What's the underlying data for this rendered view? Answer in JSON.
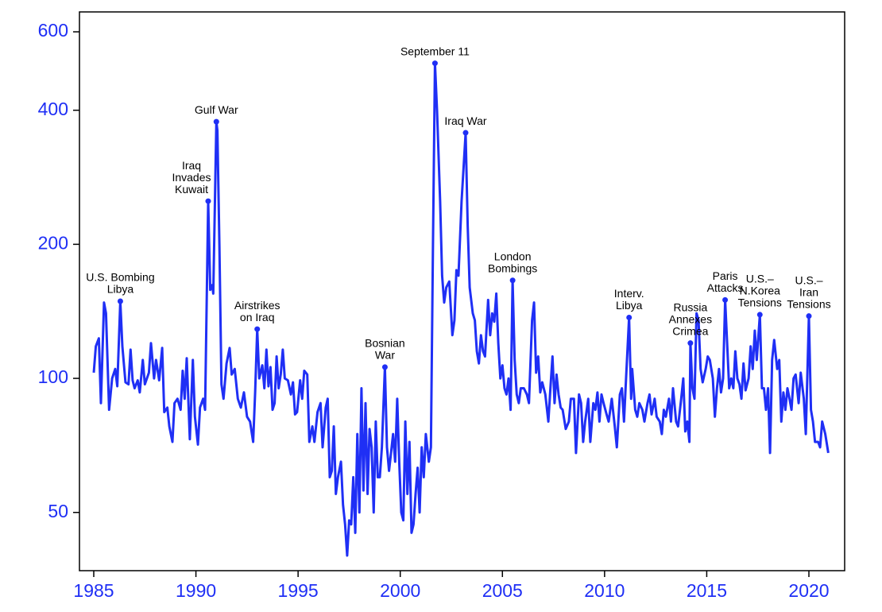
{
  "chart_data": {
    "type": "line",
    "log_scale_y": true,
    "xlim": [
      1984.3,
      2021.75
    ],
    "ylim": [
      37,
      665
    ],
    "xticks": [
      1985,
      1990,
      1995,
      2000,
      2005,
      2010,
      2015,
      2020
    ],
    "yticks": [
      50,
      100,
      200,
      400,
      600
    ],
    "x": [
      1985.0,
      1985.1,
      1985.25,
      1985.35,
      1985.5,
      1985.6,
      1985.75,
      1985.9,
      1986.05,
      1986.15,
      1986.3,
      1986.4,
      1986.55,
      1986.7,
      1986.8,
      1986.9,
      1987.0,
      1987.15,
      1987.25,
      1987.4,
      1987.5,
      1987.7,
      1987.8,
      1987.95,
      1988.05,
      1988.2,
      1988.35,
      1988.45,
      1988.6,
      1988.7,
      1988.85,
      1988.95,
      1989.1,
      1989.25,
      1989.35,
      1989.45,
      1989.55,
      1989.7,
      1989.85,
      1989.95,
      1990.1,
      1990.2,
      1990.35,
      1990.45,
      1990.6,
      1990.7,
      1990.8,
      1990.85,
      1991.0,
      1991.05,
      1991.15,
      1991.25,
      1991.35,
      1991.5,
      1991.65,
      1991.75,
      1991.9,
      1992.05,
      1992.2,
      1992.35,
      1992.5,
      1992.65,
      1992.8,
      1992.9,
      1993.0,
      1993.1,
      1993.25,
      1993.35,
      1993.45,
      1993.55,
      1993.65,
      1993.75,
      1993.85,
      1993.95,
      1994.05,
      1994.15,
      1994.25,
      1994.35,
      1994.5,
      1994.65,
      1994.75,
      1994.85,
      1994.95,
      1995.1,
      1995.2,
      1995.3,
      1995.45,
      1995.55,
      1995.7,
      1995.8,
      1995.95,
      1996.1,
      1996.2,
      1996.35,
      1996.45,
      1996.55,
      1996.65,
      1996.75,
      1996.85,
      1996.95,
      1997.1,
      1997.2,
      1997.3,
      1997.4,
      1997.5,
      1997.6,
      1997.7,
      1997.8,
      1997.9,
      1998.0,
      1998.1,
      1998.2,
      1998.3,
      1998.4,
      1998.5,
      1998.6,
      1998.7,
      1998.8,
      1998.9,
      1999.0,
      1999.1,
      1999.25,
      1999.35,
      1999.45,
      1999.55,
      1999.65,
      1999.75,
      1999.85,
      1999.95,
      2000.05,
      2000.15,
      2000.25,
      2000.35,
      2000.45,
      2000.55,
      2000.65,
      2000.75,
      2000.85,
      2000.95,
      2001.05,
      2001.15,
      2001.25,
      2001.4,
      2001.5,
      2001.6,
      2001.7,
      2001.8,
      2001.95,
      2002.05,
      2002.15,
      2002.25,
      2002.4,
      2002.55,
      2002.65,
      2002.75,
      2002.85,
      2003.0,
      2003.2,
      2003.3,
      2003.4,
      2003.55,
      2003.65,
      2003.75,
      2003.85,
      2003.95,
      2004.05,
      2004.15,
      2004.3,
      2004.4,
      2004.5,
      2004.6,
      2004.7,
      2004.8,
      2004.9,
      2005.0,
      2005.1,
      2005.2,
      2005.3,
      2005.4,
      2005.5,
      2005.6,
      2005.7,
      2005.8,
      2005.9,
      2006.05,
      2006.2,
      2006.3,
      2006.45,
      2006.55,
      2006.65,
      2006.75,
      2006.85,
      2006.95,
      2007.1,
      2007.25,
      2007.35,
      2007.45,
      2007.55,
      2007.65,
      2007.75,
      2007.85,
      2007.95,
      2008.1,
      2008.25,
      2008.35,
      2008.5,
      2008.6,
      2008.75,
      2008.85,
      2008.95,
      2009.05,
      2009.2,
      2009.3,
      2009.45,
      2009.55,
      2009.65,
      2009.75,
      2009.85,
      2009.95,
      2010.1,
      2010.2,
      2010.35,
      2010.5,
      2010.6,
      2010.75,
      2010.85,
      2010.95,
      2011.05,
      2011.2,
      2011.3,
      2011.35,
      2011.5,
      2011.6,
      2011.7,
      2011.85,
      2011.95,
      2012.1,
      2012.2,
      2012.3,
      2012.45,
      2012.55,
      2012.7,
      2012.8,
      2012.9,
      2013.0,
      2013.15,
      2013.25,
      2013.35,
      2013.5,
      2013.6,
      2013.75,
      2013.85,
      2013.95,
      2014.05,
      2014.15,
      2014.2,
      2014.3,
      2014.4,
      2014.5,
      2014.6,
      2014.7,
      2014.8,
      2014.95,
      2015.05,
      2015.15,
      2015.3,
      2015.4,
      2015.5,
      2015.6,
      2015.7,
      2015.8,
      2015.9,
      2016.0,
      2016.1,
      2016.2,
      2016.3,
      2016.4,
      2016.5,
      2016.6,
      2016.7,
      2016.8,
      2016.9,
      2017.05,
      2017.15,
      2017.25,
      2017.35,
      2017.45,
      2017.6,
      2017.7,
      2017.8,
      2017.9,
      2018.0,
      2018.1,
      2018.2,
      2018.3,
      2018.45,
      2018.55,
      2018.65,
      2018.75,
      2018.85,
      2018.95,
      2019.05,
      2019.15,
      2019.25,
      2019.35,
      2019.5,
      2019.6,
      2019.75,
      2019.85,
      2020.0,
      2020.1,
      2020.2,
      2020.3,
      2020.45,
      2020.55,
      2020.65,
      2020.8,
      2020.95
    ],
    "series": [
      {
        "color": "#1f2ff5",
        "values": [
          103,
          118,
          123,
          88,
          148,
          140,
          85,
          100,
          105,
          96,
          149,
          118,
          98,
          97,
          116,
          99,
          95,
          99,
          93,
          110,
          97,
          103,
          120,
          100,
          110,
          99,
          117,
          84,
          86,
          78,
          72,
          88,
          90,
          85,
          104,
          90,
          111,
          73,
          110,
          82,
          71,
          86,
          90,
          85,
          250,
          158,
          162,
          155,
          377,
          360,
          200,
          97,
          90,
          108,
          117,
          102,
          105,
          90,
          86,
          93,
          82,
          80,
          72,
          93,
          129,
          100,
          107,
          95,
          116,
          96,
          106,
          85,
          88,
          112,
          95,
          102,
          116,
          100,
          99,
          92,
          98,
          83,
          84,
          99,
          90,
          104,
          102,
          72,
          78,
          72,
          84,
          88,
          70,
          86,
          90,
          60,
          62,
          78,
          55,
          60,
          65,
          52,
          47,
          40,
          48,
          47,
          60,
          45,
          75,
          50,
          95,
          56,
          88,
          55,
          77,
          70,
          50,
          80,
          60,
          60,
          70,
          106,
          70,
          62,
          68,
          75,
          65,
          90,
          65,
          50,
          48,
          80,
          55,
          72,
          45,
          47,
          55,
          63,
          50,
          70,
          60,
          75,
          65,
          70,
          200,
          510,
          400,
          250,
          170,
          148,
          160,
          165,
          125,
          135,
          175,
          170,
          250,
          356,
          220,
          160,
          140,
          135,
          115,
          108,
          125,
          115,
          112,
          150,
          125,
          140,
          134,
          155,
          120,
          100,
          107,
          95,
          92,
          100,
          85,
          166,
          110,
          92,
          88,
          95,
          95,
          92,
          88,
          135,
          148,
          103,
          112,
          93,
          98,
          92,
          80,
          95,
          112,
          88,
          102,
          92,
          86,
          85,
          77,
          80,
          90,
          90,
          68,
          92,
          88,
          72,
          80,
          90,
          72,
          88,
          85,
          93,
          80,
          92,
          88,
          83,
          80,
          90,
          78,
          70,
          92,
          95,
          80,
          100,
          137,
          90,
          105,
          85,
          82,
          88,
          85,
          80,
          88,
          92,
          83,
          90,
          82,
          80,
          75,
          85,
          82,
          90,
          80,
          95,
          80,
          78,
          90,
          100,
          76,
          80,
          72,
          120,
          95,
          90,
          140,
          135,
          105,
          98,
          105,
          112,
          110,
          100,
          82,
          95,
          105,
          93,
          100,
          150,
          120,
          95,
          100,
          95,
          115,
          100,
          97,
          90,
          108,
          94,
          100,
          118,
          105,
          128,
          110,
          139,
          95,
          95,
          85,
          95,
          68,
          110,
          122,
          105,
          110,
          80,
          93,
          85,
          95,
          90,
          85,
          100,
          102,
          88,
          103,
          90,
          75,
          138,
          85,
          80,
          72,
          72,
          70,
          80,
          75,
          68
        ]
      }
    ],
    "annotations": [
      {
        "lines": [
          "U.S. Bombing",
          "Libya"
        ],
        "x": 1986.3,
        "value": 149
      },
      {
        "lines": [
          "Iraq",
          "Invades",
          "Kuwait"
        ],
        "x": 1990.6,
        "value": 250
      },
      {
        "lines": [
          "Gulf War"
        ],
        "x": 1991.0,
        "value": 377
      },
      {
        "lines": [
          "Airstrikes",
          "on Iraq"
        ],
        "x": 1993.0,
        "value": 129
      },
      {
        "lines": [
          "Bosnian",
          "War"
        ],
        "x": 1999.25,
        "value": 106
      },
      {
        "lines": [
          "September 11"
        ],
        "x": 2001.7,
        "value": 510
      },
      {
        "lines": [
          "Iraq War"
        ],
        "x": 2003.2,
        "value": 356
      },
      {
        "lines": [
          "London",
          "Bombings"
        ],
        "x": 2005.5,
        "value": 166
      },
      {
        "lines": [
          "Interv.",
          "Libya"
        ],
        "x": 2011.2,
        "value": 137
      },
      {
        "lines": [
          "Russia",
          "Annexes",
          "Crimea"
        ],
        "x": 2014.2,
        "value": 120
      },
      {
        "lines": [
          "Paris",
          "Attacks"
        ],
        "x": 2015.9,
        "value": 150
      },
      {
        "lines": [
          "U.S.–",
          "N.Korea",
          "Tensions"
        ],
        "x": 2017.6,
        "value": 139
      },
      {
        "lines": [
          "U.S.–",
          "Iran",
          "Tensions"
        ],
        "x": 2020.0,
        "value": 138
      }
    ]
  }
}
